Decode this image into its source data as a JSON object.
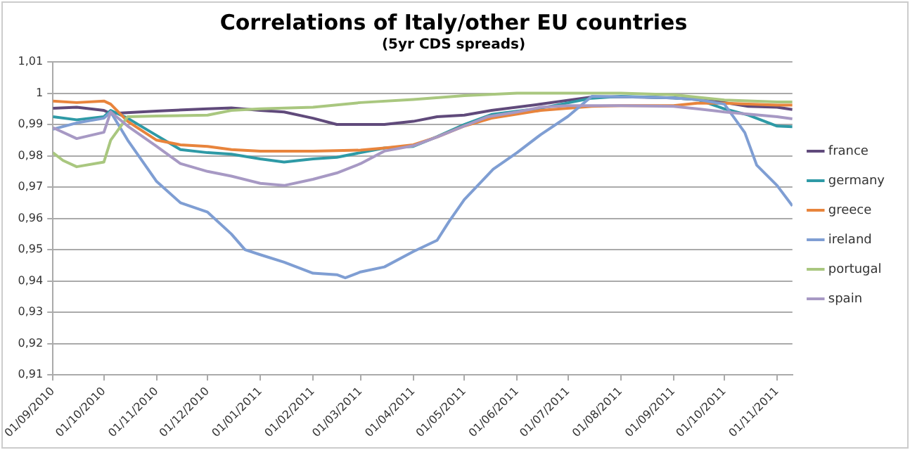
{
  "chart_data": {
    "type": "line",
    "title": "Correlations of Italy/other EU countries",
    "subtitle": "(5yr CDS spreads)",
    "xlim": [
      "2010-09-01",
      "2011-11-10"
    ],
    "xticks": [
      {
        "value": "2010-09-01",
        "label": "01/09/2010"
      },
      {
        "value": "2010-10-01",
        "label": "01/10/2010"
      },
      {
        "value": "2010-11-01",
        "label": "01/11/2010"
      },
      {
        "value": "2010-12-01",
        "label": "01/12/2010"
      },
      {
        "value": "2011-01-01",
        "label": "01/01/2011"
      },
      {
        "value": "2011-02-01",
        "label": "01/02/2011"
      },
      {
        "value": "2011-03-01",
        "label": "01/03/2011"
      },
      {
        "value": "2011-04-01",
        "label": "01/04/2011"
      },
      {
        "value": "2011-05-01",
        "label": "01/05/2011"
      },
      {
        "value": "2011-06-01",
        "label": "01/06/2011"
      },
      {
        "value": "2011-07-01",
        "label": "01/07/2011"
      },
      {
        "value": "2011-08-01",
        "label": "01/08/2011"
      },
      {
        "value": "2011-09-01",
        "label": "01/09/2011"
      },
      {
        "value": "2011-10-01",
        "label": "01/10/2011"
      },
      {
        "value": "2011-11-01",
        "label": "01/11/2011"
      }
    ],
    "ylim": [
      0.91,
      1.01
    ],
    "yticks": [
      {
        "value": 0.91,
        "label": "0,91"
      },
      {
        "value": 0.92,
        "label": "0,92"
      },
      {
        "value": 0.93,
        "label": "0,93"
      },
      {
        "value": 0.94,
        "label": "0,94"
      },
      {
        "value": 0.95,
        "label": "0,95"
      },
      {
        "value": 0.96,
        "label": "0,96"
      },
      {
        "value": 0.97,
        "label": "0,97"
      },
      {
        "value": 0.98,
        "label": "0,98"
      },
      {
        "value": 0.99,
        "label": "0,99"
      },
      {
        "value": 1,
        "label": "1"
      },
      {
        "value": 1.01,
        "label": "1,01"
      }
    ],
    "grid": "y",
    "legend": "right",
    "marker": "none",
    "line_style": "solid",
    "series": [
      {
        "name": "france",
        "color": "#604a7b",
        "x": [
          "2010-09-01",
          "2010-09-15",
          "2010-10-01",
          "2010-10-05",
          "2010-11-01",
          "2010-12-01",
          "2010-12-15",
          "2011-01-01",
          "2011-01-15",
          "2011-02-01",
          "2011-02-15",
          "2011-03-01",
          "2011-03-15",
          "2011-04-01",
          "2011-04-15",
          "2011-05-01",
          "2011-05-17",
          "2011-06-15",
          "2011-07-15",
          "2011-08-01",
          "2011-08-15",
          "2011-09-01",
          "2011-09-15",
          "2011-10-01",
          "2011-10-15",
          "2011-11-01",
          "2011-11-10"
        ],
        "values": [
          0.9952,
          0.9955,
          0.9945,
          0.9935,
          0.9943,
          0.995,
          0.9953,
          0.9945,
          0.994,
          0.992,
          0.99,
          0.99,
          0.99,
          0.991,
          0.9925,
          0.993,
          0.9945,
          0.9965,
          0.9988,
          0.9988,
          0.9987,
          0.9985,
          0.998,
          0.997,
          0.9958,
          0.9955,
          0.9948
        ]
      },
      {
        "name": "germany",
        "color": "#2e9aa6",
        "x": [
          "2010-09-01",
          "2010-09-15",
          "2010-10-01",
          "2010-10-05",
          "2010-10-15",
          "2010-11-01",
          "2010-11-15",
          "2010-12-01",
          "2010-12-15",
          "2011-01-01",
          "2011-01-15",
          "2011-02-01",
          "2011-02-15",
          "2011-03-01",
          "2011-03-15",
          "2011-04-01",
          "2011-04-15",
          "2011-05-01",
          "2011-05-17",
          "2011-06-15",
          "2011-07-15",
          "2011-08-01",
          "2011-09-01",
          "2011-09-15",
          "2011-10-01",
          "2011-10-15",
          "2011-11-01",
          "2011-11-10"
        ],
        "values": [
          0.9925,
          0.9915,
          0.9925,
          0.9945,
          0.992,
          0.9865,
          0.982,
          0.981,
          0.9805,
          0.979,
          0.978,
          0.979,
          0.9795,
          0.981,
          0.9825,
          0.983,
          0.9861,
          0.99,
          0.9932,
          0.9952,
          0.9984,
          0.999,
          0.9985,
          0.998,
          0.995,
          0.993,
          0.9895,
          0.9893
        ]
      },
      {
        "name": "greece",
        "color": "#e8843c",
        "x": [
          "2010-09-01",
          "2010-09-15",
          "2010-10-01",
          "2010-10-05",
          "2010-10-15",
          "2010-11-01",
          "2010-11-15",
          "2010-12-01",
          "2010-12-15",
          "2011-01-01",
          "2011-02-01",
          "2011-03-01",
          "2011-03-15",
          "2011-04-01",
          "2011-04-15",
          "2011-05-01",
          "2011-05-17",
          "2011-06-15",
          "2011-07-15",
          "2011-08-01",
          "2011-09-01",
          "2011-09-15",
          "2011-10-01",
          "2011-10-15",
          "2011-11-01",
          "2011-11-10"
        ],
        "values": [
          0.9975,
          0.997,
          0.9975,
          0.9965,
          0.991,
          0.985,
          0.9835,
          0.983,
          0.982,
          0.9815,
          0.9815,
          0.9818,
          0.9825,
          0.9835,
          0.986,
          0.9895,
          0.992,
          0.9945,
          0.9958,
          0.996,
          0.996,
          0.9968,
          0.9968,
          0.9965,
          0.9962,
          0.9962
        ]
      },
      {
        "name": "ireland",
        "color": "#7f9ed3",
        "x": [
          "2010-09-01",
          "2010-09-15",
          "2010-10-01",
          "2010-10-05",
          "2010-10-15",
          "2010-11-01",
          "2010-11-15",
          "2010-12-01",
          "2010-12-15",
          "2010-12-23",
          "2011-01-01",
          "2011-01-15",
          "2011-02-01",
          "2011-02-15",
          "2011-02-20",
          "2011-03-01",
          "2011-03-15",
          "2011-04-01",
          "2011-04-15",
          "2011-04-22",
          "2011-05-01",
          "2011-05-18",
          "2011-06-01",
          "2011-06-15",
          "2011-07-01",
          "2011-07-15",
          "2011-08-01",
          "2011-08-15",
          "2011-09-01",
          "2011-09-15",
          "2011-10-01",
          "2011-10-13",
          "2011-10-20",
          "2011-11-01",
          "2011-11-10"
        ],
        "values": [
          0.9885,
          0.9905,
          0.992,
          0.994,
          0.985,
          0.9718,
          0.965,
          0.962,
          0.955,
          0.95,
          0.9484,
          0.946,
          0.9425,
          0.942,
          0.941,
          0.9429,
          0.9445,
          0.9494,
          0.953,
          0.959,
          0.966,
          0.9757,
          0.981,
          0.9868,
          0.9926,
          0.999,
          0.9988,
          0.9987,
          0.9985,
          0.998,
          0.9965,
          0.9874,
          0.977,
          0.9705,
          0.964
        ]
      },
      {
        "name": "portugal",
        "color": "#a9c77f",
        "x": [
          "2010-09-01",
          "2010-09-07",
          "2010-09-15",
          "2010-10-01",
          "2010-10-05",
          "2010-10-15",
          "2010-11-01",
          "2010-12-01",
          "2010-12-15",
          "2011-01-01",
          "2011-02-01",
          "2011-03-01",
          "2011-04-01",
          "2011-05-01",
          "2011-06-01",
          "2011-07-01",
          "2011-08-01",
          "2011-09-01",
          "2011-10-01",
          "2011-11-01",
          "2011-11-10"
        ],
        "values": [
          0.981,
          0.9785,
          0.9765,
          0.978,
          0.985,
          0.9925,
          0.9927,
          0.993,
          0.9945,
          0.995,
          0.9955,
          0.997,
          0.998,
          0.9992,
          1,
          1,
          1,
          0.9995,
          0.9978,
          0.9972,
          0.9972
        ]
      },
      {
        "name": "spain",
        "color": "#a799c4",
        "x": [
          "2010-09-01",
          "2010-09-15",
          "2010-10-01",
          "2010-10-05",
          "2010-10-15",
          "2010-11-01",
          "2010-11-15",
          "2010-12-01",
          "2010-12-15",
          "2011-01-01",
          "2011-01-15",
          "2011-02-01",
          "2011-02-15",
          "2011-03-01",
          "2011-03-15",
          "2011-04-01",
          "2011-04-15",
          "2011-05-01",
          "2011-05-15",
          "2011-06-01",
          "2011-06-15",
          "2011-07-01",
          "2011-08-01",
          "2011-09-01",
          "2011-09-15",
          "2011-10-01",
          "2011-11-01",
          "2011-11-10"
        ],
        "values": [
          0.989,
          0.9855,
          0.9875,
          0.994,
          0.9895,
          0.983,
          0.9775,
          0.975,
          0.9735,
          0.9712,
          0.9705,
          0.9725,
          0.9745,
          0.9775,
          0.9815,
          0.9832,
          0.986,
          0.9895,
          0.9925,
          0.994,
          0.9955,
          0.996,
          0.996,
          0.9958,
          0.995,
          0.994,
          0.9925,
          0.9918
        ]
      }
    ]
  }
}
